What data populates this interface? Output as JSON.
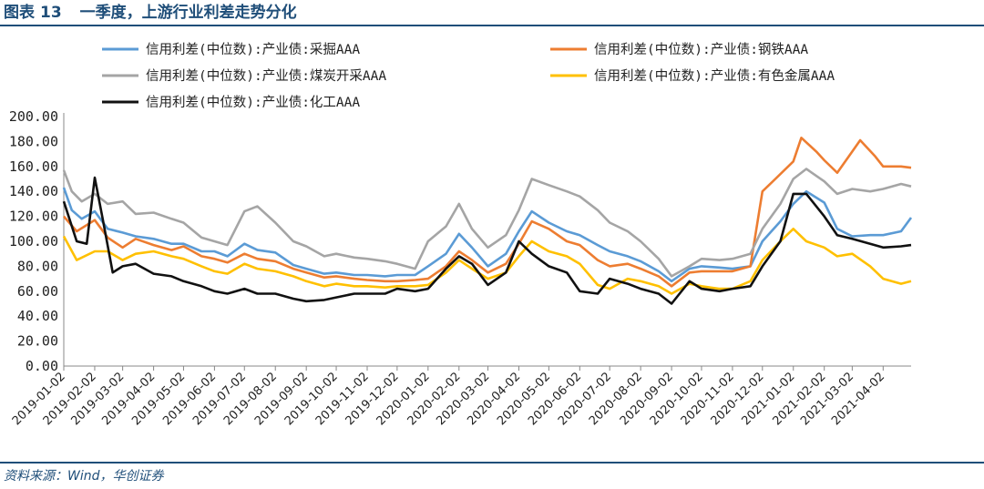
{
  "header": {
    "title_prefix": "图表",
    "title_number": "13",
    "title_text": "一季度，上游行业利差走势分化"
  },
  "source": "资料来源：Wind，华创证券",
  "chart_data": {
    "type": "line",
    "title": "一季度，上游行业利差走势分化",
    "xlabel": "",
    "ylabel": "",
    "ylim": [
      0,
      200
    ],
    "y_ticks": [
      "0.00",
      "20.00",
      "40.00",
      "60.00",
      "80.00",
      "100.00",
      "120.00",
      "140.00",
      "160.00",
      "180.00",
      "200.00"
    ],
    "x_ticks": [
      "2019-01-02",
      "2019-02-02",
      "2019-03-02",
      "2019-04-02",
      "2019-05-02",
      "2019-06-02",
      "2019-07-02",
      "2019-08-02",
      "2019-09-02",
      "2019-10-02",
      "2019-11-02",
      "2019-12-02",
      "2020-01-02",
      "2020-02-02",
      "2020-03-02",
      "2020-04-02",
      "2020-05-02",
      "2020-06-02",
      "2020-07-02",
      "2020-08-02",
      "2020-09-02",
      "2020-10-02",
      "2020-11-02",
      "2020-12-02",
      "2021-01-02",
      "2021-02-02",
      "2021-03-02",
      "2021-04-02"
    ],
    "x_range": [
      "2019-01-02",
      "2021-04-30"
    ],
    "grid": false,
    "legend_position": "top",
    "series": [
      {
        "name": "信用利差(中位数):产业债:采掘AAA",
        "color": "#5b9bd5",
        "x": [
          "2019-01-02",
          "2019-01-10",
          "2019-01-20",
          "2019-02-02",
          "2019-02-15",
          "2019-03-02",
          "2019-03-15",
          "2019-04-02",
          "2019-04-20",
          "2019-05-02",
          "2019-05-20",
          "2019-06-02",
          "2019-06-15",
          "2019-07-02",
          "2019-07-15",
          "2019-08-02",
          "2019-08-20",
          "2019-09-02",
          "2019-09-20",
          "2019-10-02",
          "2019-10-20",
          "2019-11-02",
          "2019-11-20",
          "2019-12-02",
          "2019-12-20",
          "2020-01-02",
          "2020-01-20",
          "2020-02-02",
          "2020-02-15",
          "2020-03-02",
          "2020-03-20",
          "2020-04-02",
          "2020-04-15",
          "2020-05-02",
          "2020-05-20",
          "2020-06-02",
          "2020-06-20",
          "2020-07-02",
          "2020-07-20",
          "2020-08-02",
          "2020-08-20",
          "2020-09-02",
          "2020-09-20",
          "2020-10-02",
          "2020-10-20",
          "2020-11-02",
          "2020-11-20",
          "2020-12-02",
          "2020-12-20",
          "2021-01-02",
          "2021-01-15",
          "2021-02-02",
          "2021-02-15",
          "2021-03-02",
          "2021-03-20",
          "2021-04-02",
          "2021-04-20",
          "2021-04-30"
        ],
        "y": [
          143,
          125,
          118,
          124,
          110,
          107,
          104,
          102,
          98,
          98,
          92,
          92,
          88,
          98,
          93,
          91,
          81,
          78,
          74,
          75,
          73,
          73,
          72,
          73,
          73,
          80,
          90,
          106,
          95,
          80,
          90,
          108,
          124,
          115,
          108,
          105,
          97,
          92,
          88,
          84,
          76,
          68,
          78,
          80,
          79,
          78,
          80,
          100,
          116,
          130,
          140,
          131,
          110,
          104,
          105,
          105,
          108,
          119
        ]
      },
      {
        "name": "信用利差(中位数):产业债:钢铁AAA",
        "color": "#ed7d31",
        "x": [
          "2019-01-02",
          "2019-01-15",
          "2019-02-02",
          "2019-02-15",
          "2019-03-02",
          "2019-03-15",
          "2019-04-02",
          "2019-04-20",
          "2019-05-02",
          "2019-05-20",
          "2019-06-02",
          "2019-06-15",
          "2019-07-02",
          "2019-07-15",
          "2019-08-02",
          "2019-08-20",
          "2019-09-02",
          "2019-09-20",
          "2019-10-02",
          "2019-10-20",
          "2019-11-02",
          "2019-11-20",
          "2019-12-02",
          "2019-12-20",
          "2020-01-02",
          "2020-01-20",
          "2020-02-02",
          "2020-02-15",
          "2020-03-02",
          "2020-03-20",
          "2020-04-02",
          "2020-04-15",
          "2020-05-02",
          "2020-05-20",
          "2020-06-02",
          "2020-06-20",
          "2020-07-02",
          "2020-07-20",
          "2020-08-02",
          "2020-08-20",
          "2020-09-02",
          "2020-09-20",
          "2020-10-02",
          "2020-10-20",
          "2020-11-02",
          "2020-11-20",
          "2020-12-02",
          "2020-12-15",
          "2021-01-02",
          "2021-01-10",
          "2021-01-25",
          "2021-02-02",
          "2021-02-15",
          "2021-03-02",
          "2021-03-10",
          "2021-03-25",
          "2021-04-02",
          "2021-04-20",
          "2021-04-30"
        ],
        "y": [
          120,
          108,
          117,
          103,
          95,
          102,
          97,
          93,
          96,
          88,
          86,
          83,
          90,
          86,
          84,
          78,
          75,
          71,
          72,
          70,
          69,
          68,
          68,
          69,
          70,
          80,
          92,
          85,
          75,
          82,
          98,
          116,
          110,
          100,
          97,
          85,
          80,
          82,
          78,
          72,
          64,
          75,
          76,
          76,
          76,
          80,
          140,
          150,
          164,
          183,
          172,
          165,
          155,
          172,
          181,
          168,
          160,
          160,
          159
        ]
      },
      {
        "name": "信用利差(中位数):产业债:煤炭开采AAA",
        "color": "#a5a5a5",
        "x": [
          "2019-01-02",
          "2019-01-10",
          "2019-01-20",
          "2019-02-02",
          "2019-02-15",
          "2019-03-02",
          "2019-03-15",
          "2019-04-02",
          "2019-04-20",
          "2019-05-02",
          "2019-05-20",
          "2019-06-02",
          "2019-06-15",
          "2019-07-02",
          "2019-07-15",
          "2019-08-02",
          "2019-08-20",
          "2019-09-02",
          "2019-09-20",
          "2019-10-02",
          "2019-10-20",
          "2019-11-02",
          "2019-11-20",
          "2019-12-02",
          "2019-12-20",
          "2020-01-02",
          "2020-01-20",
          "2020-02-02",
          "2020-02-15",
          "2020-03-02",
          "2020-03-20",
          "2020-04-02",
          "2020-04-15",
          "2020-05-02",
          "2020-05-20",
          "2020-06-02",
          "2020-06-20",
          "2020-07-02",
          "2020-07-20",
          "2020-08-02",
          "2020-08-20",
          "2020-09-02",
          "2020-09-20",
          "2020-10-02",
          "2020-10-20",
          "2020-11-02",
          "2020-11-20",
          "2020-12-02",
          "2020-12-20",
          "2021-01-02",
          "2021-01-15",
          "2021-02-02",
          "2021-02-15",
          "2021-03-02",
          "2021-03-20",
          "2021-04-02",
          "2021-04-20",
          "2021-04-30"
        ],
        "y": [
          157,
          140,
          132,
          138,
          130,
          132,
          122,
          123,
          118,
          115,
          103,
          100,
          97,
          124,
          128,
          115,
          100,
          96,
          88,
          90,
          87,
          86,
          84,
          82,
          78,
          100,
          112,
          130,
          110,
          95,
          105,
          125,
          150,
          145,
          140,
          136,
          125,
          115,
          108,
          100,
          86,
          72,
          80,
          86,
          85,
          86,
          90,
          110,
          130,
          150,
          158,
          148,
          138,
          142,
          140,
          142,
          146,
          144
        ]
      },
      {
        "name": "信用利差(中位数):产业债:有色金属AAA",
        "color": "#ffc000",
        "x": [
          "2019-01-02",
          "2019-01-15",
          "2019-02-02",
          "2019-02-15",
          "2019-03-02",
          "2019-03-15",
          "2019-04-02",
          "2019-04-20",
          "2019-05-02",
          "2019-05-20",
          "2019-06-02",
          "2019-06-15",
          "2019-07-02",
          "2019-07-15",
          "2019-08-02",
          "2019-08-20",
          "2019-09-02",
          "2019-09-20",
          "2019-10-02",
          "2019-10-20",
          "2019-11-02",
          "2019-11-20",
          "2019-12-02",
          "2019-12-20",
          "2020-01-02",
          "2020-01-20",
          "2020-02-02",
          "2020-02-15",
          "2020-03-02",
          "2020-03-20",
          "2020-04-02",
          "2020-04-15",
          "2020-05-02",
          "2020-05-20",
          "2020-06-02",
          "2020-06-20",
          "2020-07-02",
          "2020-07-20",
          "2020-08-02",
          "2020-08-20",
          "2020-09-02",
          "2020-09-20",
          "2020-10-02",
          "2020-10-20",
          "2020-11-02",
          "2020-11-20",
          "2020-12-02",
          "2020-12-20",
          "2021-01-02",
          "2021-01-15",
          "2021-02-02",
          "2021-02-15",
          "2021-03-02",
          "2021-03-20",
          "2021-04-02",
          "2021-04-20",
          "2021-04-30"
        ],
        "y": [
          104,
          85,
          92,
          92,
          85,
          90,
          92,
          88,
          86,
          80,
          76,
          74,
          82,
          78,
          76,
          72,
          68,
          64,
          66,
          64,
          64,
          63,
          64,
          64,
          65,
          75,
          85,
          78,
          70,
          75,
          88,
          100,
          92,
          88,
          82,
          65,
          62,
          70,
          68,
          64,
          58,
          66,
          64,
          62,
          62,
          68,
          85,
          100,
          110,
          100,
          95,
          88,
          90,
          80,
          70,
          66,
          68
        ]
      },
      {
        "name": "信用利差(中位数):产业债:化工AAA",
        "color": "#111111",
        "x": [
          "2019-01-02",
          "2019-01-15",
          "2019-01-25",
          "2019-02-02",
          "2019-02-10",
          "2019-02-20",
          "2019-03-02",
          "2019-03-15",
          "2019-04-02",
          "2019-04-20",
          "2019-05-02",
          "2019-05-20",
          "2019-06-02",
          "2019-06-15",
          "2019-07-02",
          "2019-07-15",
          "2019-08-02",
          "2019-08-20",
          "2019-09-02",
          "2019-09-20",
          "2019-10-02",
          "2019-10-20",
          "2019-11-02",
          "2019-11-20",
          "2019-12-02",
          "2019-12-20",
          "2020-01-02",
          "2020-01-20",
          "2020-02-02",
          "2020-02-15",
          "2020-03-02",
          "2020-03-20",
          "2020-04-02",
          "2020-04-15",
          "2020-05-02",
          "2020-05-20",
          "2020-06-02",
          "2020-06-20",
          "2020-07-02",
          "2020-07-20",
          "2020-08-02",
          "2020-08-20",
          "2020-09-02",
          "2020-09-20",
          "2020-10-02",
          "2020-10-20",
          "2020-11-02",
          "2020-11-20",
          "2020-12-02",
          "2020-12-20",
          "2021-01-02",
          "2021-01-15",
          "2021-02-02",
          "2021-02-15",
          "2021-03-02",
          "2021-03-20",
          "2021-04-02",
          "2021-04-20",
          "2021-04-30"
        ],
        "y": [
          132,
          100,
          98,
          151,
          118,
          75,
          80,
          82,
          74,
          72,
          68,
          64,
          60,
          58,
          62,
          58,
          58,
          54,
          52,
          53,
          55,
          58,
          58,
          58,
          62,
          60,
          62,
          78,
          88,
          82,
          65,
          75,
          100,
          90,
          80,
          75,
          60,
          58,
          70,
          66,
          62,
          58,
          50,
          68,
          62,
          60,
          62,
          64,
          80,
          100,
          138,
          138,
          120,
          105,
          102,
          98,
          95,
          96,
          97
        ]
      }
    ]
  }
}
